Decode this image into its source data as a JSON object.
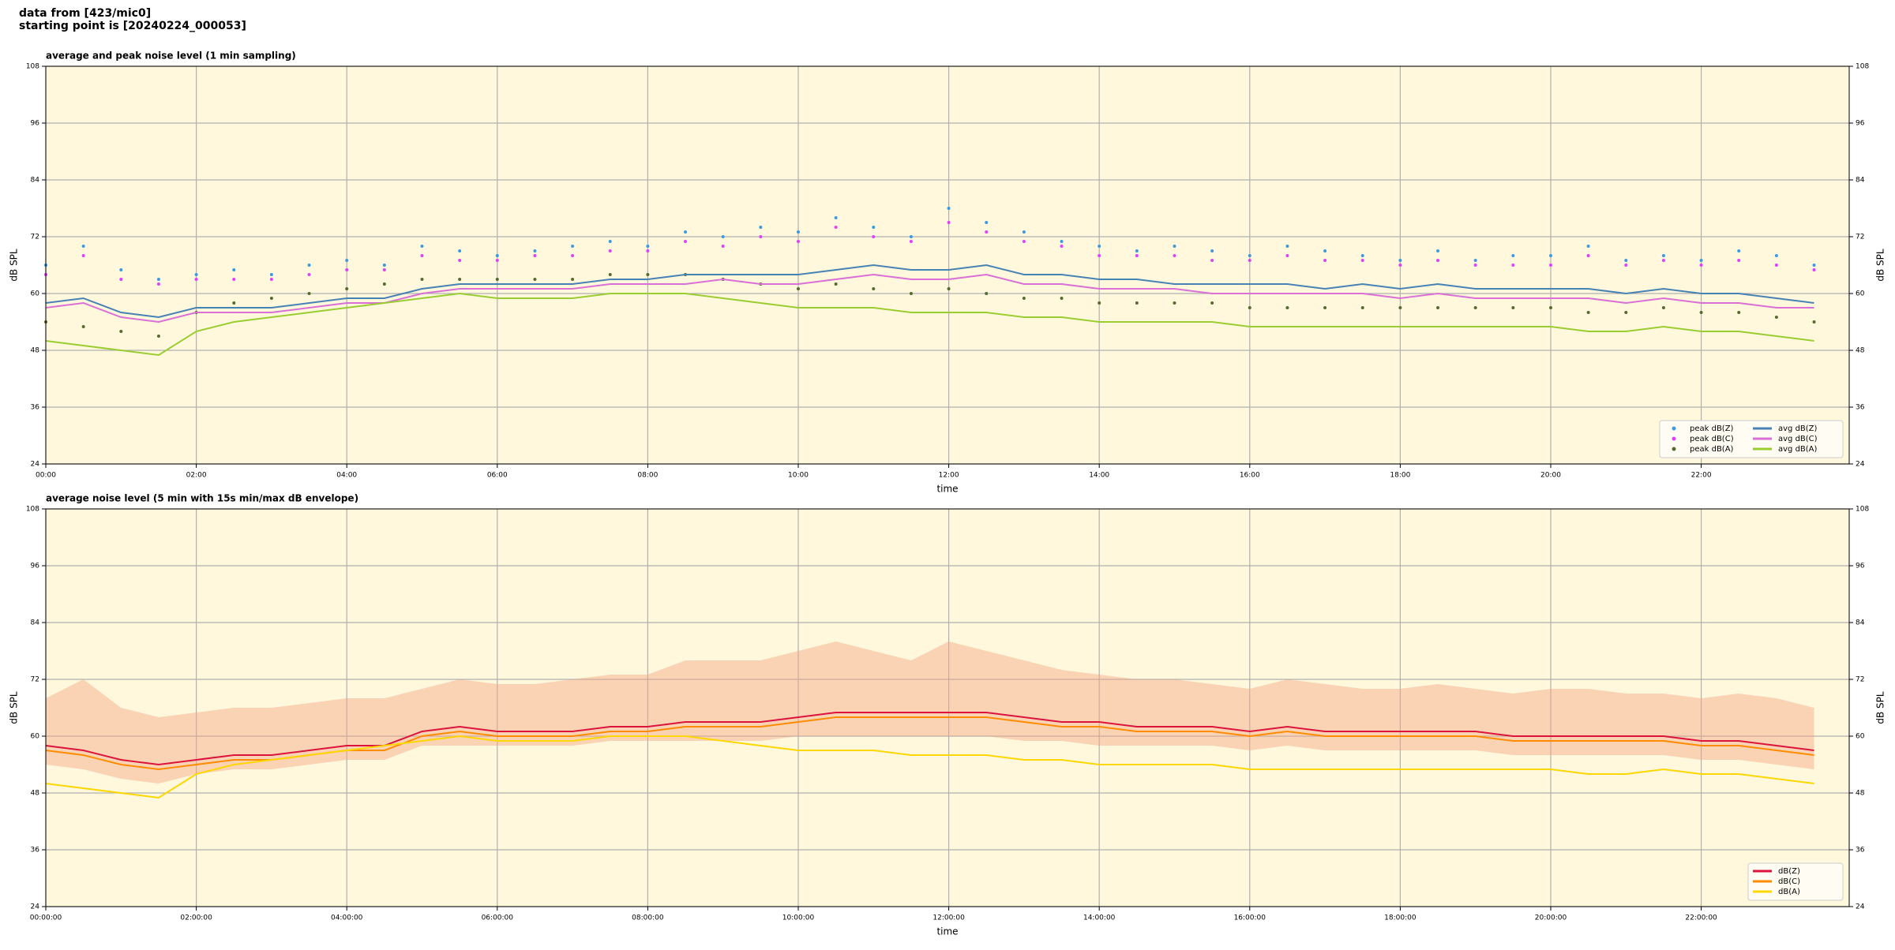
{
  "figure_title": [
    "data from [423/mic0]",
    "starting point is [20240224_000053]"
  ],
  "chart_data": [
    {
      "type": "line",
      "title": "average and peak noise level (1 min sampling)",
      "xlabel": "time",
      "ylabel": "dB SPL",
      "background": "#fff8dc",
      "grid": true,
      "legend": {
        "loc": "lower right",
        "ncol": 2
      },
      "xlim": [
        0,
        1438
      ],
      "ylim": [
        24,
        108
      ],
      "xticks": [
        {
          "value": 0,
          "label": "00:00"
        },
        {
          "value": 120,
          "label": "02:00"
        },
        {
          "value": 240,
          "label": "04:00"
        },
        {
          "value": 360,
          "label": "06:00"
        },
        {
          "value": 480,
          "label": "08:00"
        },
        {
          "value": 600,
          "label": "10:00"
        },
        {
          "value": 720,
          "label": "12:00"
        },
        {
          "value": 840,
          "label": "14:00"
        },
        {
          "value": 960,
          "label": "16:00"
        },
        {
          "value": 1080,
          "label": "18:00"
        },
        {
          "value": 1200,
          "label": "20:00"
        },
        {
          "value": 1320,
          "label": "22:00"
        }
      ],
      "yticks": [
        24,
        36,
        48,
        60,
        72,
        84,
        96,
        108
      ],
      "x": [
        0,
        30,
        60,
        90,
        120,
        150,
        180,
        210,
        240,
        270,
        300,
        330,
        360,
        390,
        420,
        450,
        480,
        510,
        540,
        570,
        600,
        630,
        660,
        690,
        720,
        750,
        780,
        810,
        840,
        870,
        900,
        930,
        960,
        990,
        1020,
        1050,
        1080,
        1110,
        1140,
        1170,
        1200,
        1230,
        1260,
        1290,
        1320,
        1350,
        1380,
        1410
      ],
      "series": [
        {
          "name": "peak dB(Z)",
          "style": "points",
          "color": "#3b9ae1",
          "values": [
            66,
            70,
            65,
            63,
            64,
            65,
            64,
            66,
            67,
            66,
            70,
            69,
            68,
            69,
            70,
            71,
            70,
            73,
            72,
            74,
            73,
            76,
            74,
            72,
            78,
            75,
            73,
            71,
            70,
            69,
            70,
            69,
            68,
            70,
            69,
            68,
            67,
            69,
            67,
            68,
            68,
            70,
            67,
            68,
            67,
            69,
            68,
            66
          ]
        },
        {
          "name": "peak dB(C)",
          "style": "points",
          "color": "#e040fb",
          "values": [
            64,
            68,
            63,
            62,
            63,
            63,
            63,
            64,
            65,
            65,
            68,
            67,
            67,
            68,
            68,
            69,
            69,
            71,
            70,
            72,
            71,
            74,
            72,
            71,
            75,
            73,
            71,
            70,
            68,
            68,
            68,
            67,
            67,
            68,
            67,
            67,
            66,
            67,
            66,
            66,
            66,
            68,
            66,
            67,
            66,
            67,
            66,
            65
          ]
        },
        {
          "name": "peak dB(A)",
          "style": "points",
          "color": "#556b2f",
          "values": [
            54,
            53,
            52,
            51,
            56,
            58,
            59,
            60,
            61,
            62,
            63,
            63,
            63,
            63,
            63,
            64,
            64,
            64,
            63,
            62,
            61,
            62,
            61,
            60,
            61,
            60,
            59,
            59,
            58,
            58,
            58,
            58,
            57,
            57,
            57,
            57,
            57,
            57,
            57,
            57,
            57,
            56,
            56,
            57,
            56,
            56,
            55,
            54
          ]
        },
        {
          "name": "avg dB(Z)",
          "style": "line",
          "color": "#4682b4",
          "values": [
            58,
            59,
            56,
            55,
            57,
            57,
            57,
            58,
            59,
            59,
            61,
            62,
            62,
            62,
            62,
            63,
            63,
            64,
            64,
            64,
            64,
            65,
            66,
            65,
            65,
            66,
            64,
            64,
            63,
            63,
            62,
            62,
            62,
            62,
            61,
            62,
            61,
            62,
            61,
            61,
            61,
            61,
            60,
            61,
            60,
            60,
            59,
            58
          ]
        },
        {
          "name": "avg dB(C)",
          "style": "line",
          "color": "#da70d6",
          "values": [
            57,
            58,
            55,
            54,
            56,
            56,
            56,
            57,
            58,
            58,
            60,
            61,
            61,
            61,
            61,
            62,
            62,
            62,
            63,
            62,
            62,
            63,
            64,
            63,
            63,
            64,
            62,
            62,
            61,
            61,
            61,
            60,
            60,
            60,
            60,
            60,
            59,
            60,
            59,
            59,
            59,
            59,
            58,
            59,
            58,
            58,
            57,
            57
          ]
        },
        {
          "name": "avg dB(A)",
          "style": "line",
          "color": "#9acd32",
          "values": [
            50,
            49,
            48,
            47,
            52,
            54,
            55,
            56,
            57,
            58,
            59,
            60,
            59,
            59,
            59,
            60,
            60,
            60,
            59,
            58,
            57,
            57,
            57,
            56,
            56,
            56,
            55,
            55,
            54,
            54,
            54,
            54,
            53,
            53,
            53,
            53,
            53,
            53,
            53,
            53,
            53,
            52,
            52,
            53,
            52,
            52,
            51,
            50
          ]
        }
      ]
    },
    {
      "type": "line",
      "title": "average noise level (5 min with 15s min/max dB envelope)",
      "xlabel": "time",
      "ylabel": "dB SPL",
      "background": "#fff8dc",
      "grid": true,
      "legend": {
        "loc": "lower right",
        "ncol": 1
      },
      "xlim": [
        0,
        1438
      ],
      "ylim": [
        24,
        108
      ],
      "xticks": [
        {
          "value": 0,
          "label": "00:00:00"
        },
        {
          "value": 120,
          "label": "02:00:00"
        },
        {
          "value": 240,
          "label": "04:00:00"
        },
        {
          "value": 360,
          "label": "06:00:00"
        },
        {
          "value": 480,
          "label": "08:00:00"
        },
        {
          "value": 600,
          "label": "10:00:00"
        },
        {
          "value": 720,
          "label": "12:00:00"
        },
        {
          "value": 840,
          "label": "14:00:00"
        },
        {
          "value": 960,
          "label": "16:00:00"
        },
        {
          "value": 1080,
          "label": "18:00:00"
        },
        {
          "value": 1200,
          "label": "20:00:00"
        },
        {
          "value": 1320,
          "label": "22:00:00"
        }
      ],
      "yticks": [
        24,
        36,
        48,
        60,
        72,
        84,
        96,
        108
      ],
      "x": [
        0,
        30,
        60,
        90,
        120,
        150,
        180,
        210,
        240,
        270,
        300,
        330,
        360,
        390,
        420,
        450,
        480,
        510,
        540,
        570,
        600,
        630,
        660,
        690,
        720,
        750,
        780,
        810,
        840,
        870,
        900,
        930,
        960,
        990,
        1020,
        1050,
        1080,
        1110,
        1140,
        1170,
        1200,
        1230,
        1260,
        1290,
        1320,
        1350,
        1380,
        1410
      ],
      "envelope": {
        "color": "#f4a582",
        "max": [
          68,
          72,
          66,
          64,
          65,
          66,
          66,
          67,
          68,
          68,
          70,
          72,
          71,
          71,
          72,
          73,
          73,
          76,
          76,
          76,
          78,
          80,
          78,
          76,
          80,
          78,
          76,
          74,
          73,
          72,
          72,
          71,
          70,
          72,
          71,
          70,
          70,
          71,
          70,
          69,
          70,
          70,
          69,
          69,
          68,
          69,
          68,
          66
        ],
        "min": [
          54,
          53,
          51,
          50,
          52,
          53,
          53,
          54,
          55,
          55,
          58,
          58,
          58,
          58,
          58,
          59,
          59,
          59,
          59,
          59,
          60,
          60,
          60,
          60,
          60,
          60,
          59,
          59,
          58,
          58,
          58,
          58,
          57,
          58,
          57,
          57,
          57,
          57,
          57,
          56,
          56,
          56,
          56,
          56,
          55,
          55,
          54,
          53
        ]
      },
      "series": [
        {
          "name": "dB(Z)",
          "style": "line",
          "color": "#dc143c",
          "values": [
            58,
            57,
            55,
            54,
            55,
            56,
            56,
            57,
            58,
            58,
            61,
            62,
            61,
            61,
            61,
            62,
            62,
            63,
            63,
            63,
            64,
            65,
            65,
            65,
            65,
            65,
            64,
            63,
            63,
            62,
            62,
            62,
            61,
            62,
            61,
            61,
            61,
            61,
            61,
            60,
            60,
            60,
            60,
            60,
            59,
            59,
            58,
            57
          ]
        },
        {
          "name": "dB(C)",
          "style": "line",
          "color": "#ff8c00",
          "values": [
            57,
            56,
            54,
            53,
            54,
            55,
            55,
            56,
            57,
            57,
            60,
            61,
            60,
            60,
            60,
            61,
            61,
            62,
            62,
            62,
            63,
            64,
            64,
            64,
            64,
            64,
            63,
            62,
            62,
            61,
            61,
            61,
            60,
            61,
            60,
            60,
            60,
            60,
            60,
            59,
            59,
            59,
            59,
            59,
            58,
            58,
            57,
            56
          ]
        },
        {
          "name": "dB(A)",
          "style": "line",
          "color": "#ffd700",
          "values": [
            50,
            49,
            48,
            47,
            52,
            54,
            55,
            56,
            57,
            58,
            59,
            60,
            59,
            59,
            59,
            60,
            60,
            60,
            59,
            58,
            57,
            57,
            57,
            56,
            56,
            56,
            55,
            55,
            54,
            54,
            54,
            54,
            53,
            53,
            53,
            53,
            53,
            53,
            53,
            53,
            53,
            52,
            52,
            53,
            52,
            52,
            51,
            50
          ]
        }
      ]
    }
  ]
}
